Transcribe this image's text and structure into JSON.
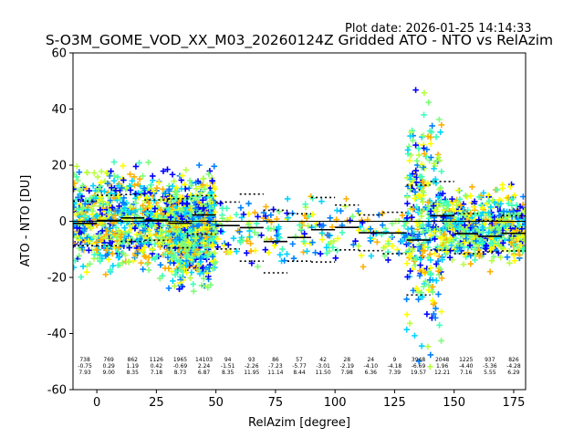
{
  "plot_date": "Plot date: 2026-01-25 14:14:33",
  "chart_data": {
    "type": "scatter",
    "title": "S-O3M_GOME_VOD_XX_M03_20260124Z Gridded ATO - NTO vs RelAzim",
    "xlabel": "RelAzim [degree]",
    "ylabel": "ATO - NTO [DU]",
    "xlim": [
      -10,
      180
    ],
    "ylim": [
      -60,
      60
    ],
    "xticks": [
      0,
      25,
      50,
      75,
      100,
      125,
      150,
      175
    ],
    "yticks": [
      -60,
      -40,
      -20,
      0,
      20,
      40,
      60
    ],
    "zero_line": 0,
    "bins": [
      {
        "x0": -10,
        "x1": 0,
        "n": "738",
        "mean": -0.75,
        "std": 7.93,
        "mean_label": "-0.75",
        "std_label": "7.93"
      },
      {
        "x0": 0,
        "x1": 10,
        "n": "769",
        "mean": 0.29,
        "std": 9.0,
        "mean_label": "0.29",
        "std_label": "9.00"
      },
      {
        "x0": 10,
        "x1": 20,
        "n": "862",
        "mean": 1.19,
        "std": 8.35,
        "mean_label": "1.19",
        "std_label": "8.35"
      },
      {
        "x0": 20,
        "x1": 30,
        "n": "1126",
        "mean": 0.42,
        "std": 7.18,
        "mean_label": "0.42",
        "std_label": "7.18"
      },
      {
        "x0": 30,
        "x1": 40,
        "n": "1965",
        "mean": -0.69,
        "std": 8.73,
        "mean_label": "-0.69",
        "std_label": "8.73"
      },
      {
        "x0": 40,
        "x1": 50,
        "n": "14103",
        "mean": 2.24,
        "std": 6.87,
        "mean_label": "2.24",
        "std_label": "6.87"
      },
      {
        "x0": 50,
        "x1": 60,
        "n": "94",
        "mean": -1.51,
        "std": 8.35,
        "mean_label": "-1.51",
        "std_label": "8.35"
      },
      {
        "x0": 60,
        "x1": 70,
        "n": "93",
        "mean": -2.26,
        "std": 11.95,
        "mean_label": "-2.26",
        "std_label": "11.95"
      },
      {
        "x0": 70,
        "x1": 80,
        "n": "86",
        "mean": -7.23,
        "std": 11.14,
        "mean_label": "-7.23",
        "std_label": "11.14"
      },
      {
        "x0": 80,
        "x1": 90,
        "n": "57",
        "mean": -5.77,
        "std": 8.44,
        "mean_label": "-5.77",
        "std_label": "8.44"
      },
      {
        "x0": 90,
        "x1": 100,
        "n": "42",
        "mean": -3.01,
        "std": 11.5,
        "mean_label": "-3.01",
        "std_label": "11.50"
      },
      {
        "x0": 100,
        "x1": 110,
        "n": "28",
        "mean": -2.19,
        "std": 7.98,
        "mean_label": "-2.19",
        "std_label": "7.98"
      },
      {
        "x0": 110,
        "x1": 120,
        "n": "24",
        "mean": -4.1,
        "std": 6.36,
        "mean_label": "-4.10",
        "std_label": "6.36"
      },
      {
        "x0": 120,
        "x1": 130,
        "n": "9",
        "mean": -4.18,
        "std": 7.39,
        "mean_label": "-4.18",
        "std_label": "7.39"
      },
      {
        "x0": 130,
        "x1": 140,
        "n": "3948",
        "mean": -6.69,
        "std": 19.57,
        "mean_label": "-6.69",
        "std_label": "19.57"
      },
      {
        "x0": 140,
        "x1": 150,
        "n": "2048",
        "mean": 1.96,
        "std": 12.21,
        "mean_label": "1.96",
        "std_label": "12.21"
      },
      {
        "x0": 150,
        "x1": 160,
        "n": "1225",
        "mean": -4.4,
        "std": 7.16,
        "mean_label": "-4.40",
        "std_label": "7.16"
      },
      {
        "x0": 160,
        "x1": 170,
        "n": "937",
        "mean": -5.36,
        "std": 5.55,
        "mean_label": "-5.36",
        "std_label": "5.55"
      },
      {
        "x0": 170,
        "x1": 180,
        "n": "826",
        "mean": -4.28,
        "std": 6.29,
        "mean_label": "-4.28",
        "std_label": "6.29"
      }
    ],
    "point_clusters": [
      {
        "x_range": [
          -10,
          50
        ],
        "y_center": 0,
        "y_spread": 14,
        "density": 0.85
      },
      {
        "x_range": [
          30,
          50
        ],
        "y_center": -6,
        "y_spread": 14,
        "density": 0.9
      },
      {
        "x_range": [
          50,
          130
        ],
        "y_center": -4,
        "y_spread": 9,
        "density": 0.12
      },
      {
        "x_range": [
          130,
          145
        ],
        "y_center": 0,
        "y_spread": 35,
        "density": 0.95
      },
      {
        "x_range": [
          145,
          180
        ],
        "y_center": -2,
        "y_spread": 10,
        "density": 0.8
      }
    ],
    "marker": "+",
    "colors": [
      "#0000ff",
      "#0080ff",
      "#00d4ff",
      "#40ffb8",
      "#7cff79",
      "#b8ff40",
      "#ffff00",
      "#ffb000"
    ]
  }
}
